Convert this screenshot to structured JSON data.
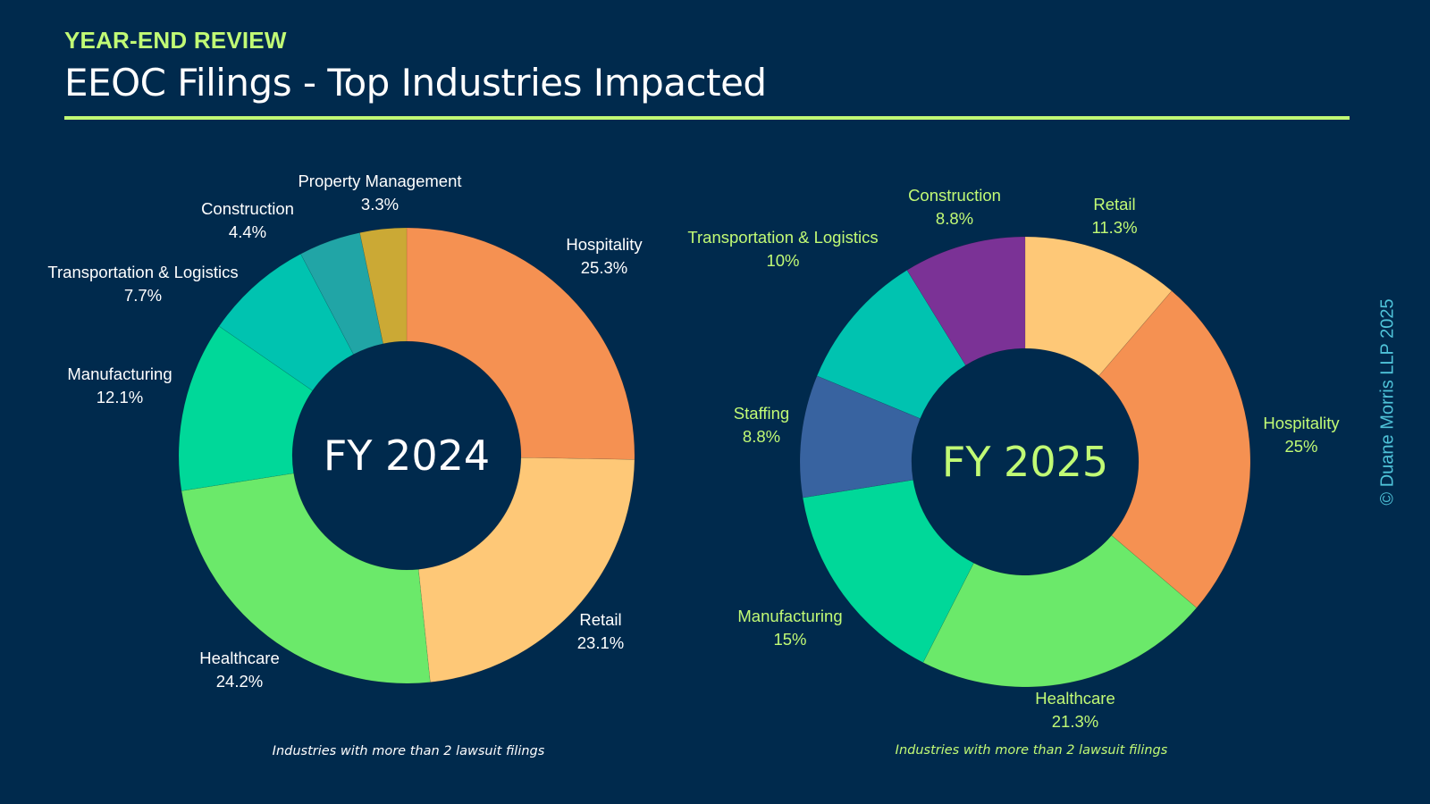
{
  "header": {
    "eyebrow": "YEAR-END REVIEW",
    "title": "EEOC Filings - Top Industries Impacted"
  },
  "copyright": "© Duane Morris LLP 2025",
  "colors": {
    "background": "#002a4d",
    "accent": "#c1fa75",
    "copyright": "#4fc3d9"
  },
  "chart_data": [
    {
      "type": "pie",
      "variant": "donut",
      "title": "FY 2024",
      "center_label": "FY 2024",
      "note": "Industries with more than 2 lawsuit filings",
      "label_color": "#ffffff",
      "slices": [
        {
          "label": "Hospitality",
          "value": 25.3,
          "display": "25.3%",
          "color": "#f59152"
        },
        {
          "label": "Retail",
          "value": 23.1,
          "display": "23.1%",
          "color": "#fec877"
        },
        {
          "label": "Healthcare",
          "value": 24.2,
          "display": "24.2%",
          "color": "#6be96a"
        },
        {
          "label": "Manufacturing",
          "value": 12.1,
          "display": "12.1%",
          "color": "#00d899"
        },
        {
          "label": "Transportation & Logistics",
          "value": 7.7,
          "display": "7.7%",
          "color": "#00c3b0"
        },
        {
          "label": "Construction",
          "value": 4.4,
          "display": "4.4%",
          "color": "#21a5a6"
        },
        {
          "label": "Property Management",
          "value": 3.3,
          "display": "3.3%",
          "color": "#cba935"
        }
      ]
    },
    {
      "type": "pie",
      "variant": "donut",
      "title": "FY 2025",
      "center_label": "FY 2025",
      "note": "Industries with more than 2 lawsuit filings",
      "label_color": "#c1fa75",
      "slices": [
        {
          "label": "Retail",
          "value": 11.3,
          "display": "11.3%",
          "color": "#fec877"
        },
        {
          "label": "Hospitality",
          "value": 25,
          "display": "25%",
          "color": "#f59152"
        },
        {
          "label": "Healthcare",
          "value": 21.3,
          "display": "21.3%",
          "color": "#6be96a"
        },
        {
          "label": "Manufacturing",
          "value": 15,
          "display": "15%",
          "color": "#00d899"
        },
        {
          "label": "Staffing",
          "value": 8.8,
          "display": "8.8%",
          "color": "#3863a0"
        },
        {
          "label": "Transportation & Logistics",
          "value": 10,
          "display": "10%",
          "color": "#00c3b0"
        },
        {
          "label": "Construction",
          "value": 8.8,
          "display": "8.8%",
          "color": "#7b3296"
        }
      ]
    }
  ]
}
